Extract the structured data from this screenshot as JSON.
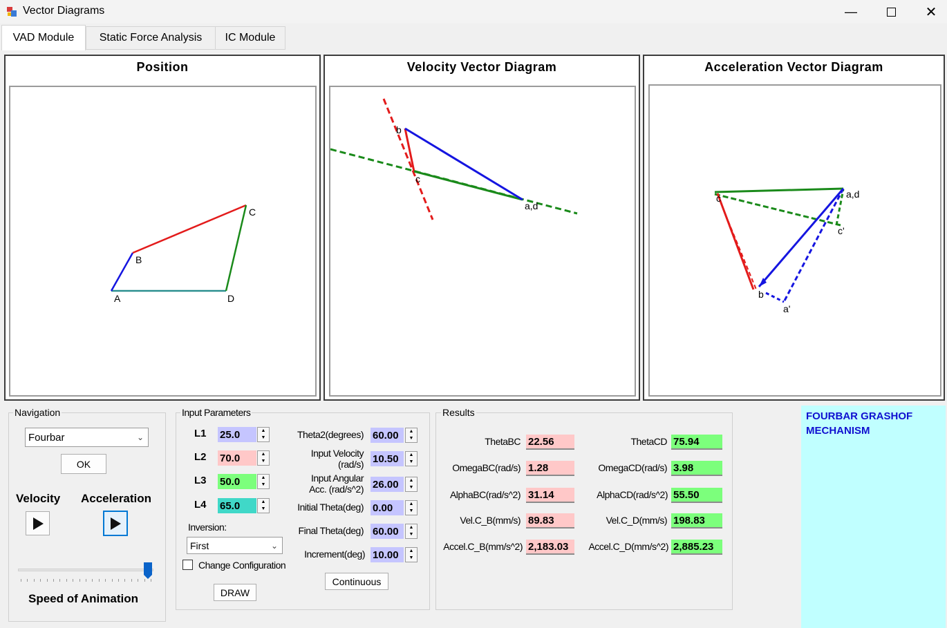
{
  "window": {
    "title": "Vector Diagrams"
  },
  "tabs": [
    "VAD Module",
    "Static Force Analysis",
    "IC Module"
  ],
  "panels": {
    "position": {
      "title": "Position",
      "labels": {
        "A": "A",
        "B": "B",
        "C": "C",
        "D": "D"
      }
    },
    "velocity": {
      "title": "Velocity Vector Diagram",
      "labels": {
        "b": "b",
        "c": "c",
        "ad": "a,d"
      }
    },
    "acceleration": {
      "title": "Acceleration Vector Diagram",
      "labels": {
        "c": "c",
        "ad": "a,d",
        "cp": "c'",
        "b": "b",
        "ap": "a'"
      }
    }
  },
  "navigation": {
    "title": "Navigation",
    "mechanism": "Fourbar",
    "ok": "OK",
    "velocity": "Velocity",
    "acceleration": "Acceleration",
    "speed": "Speed of Animation",
    "speed_level": 1.0
  },
  "inputs": {
    "title": "Input Parameters",
    "L1_label": "L1",
    "L1": "25.0",
    "L2_label": "L2",
    "L2": "70.0",
    "L3_label": "L3",
    "L3": "50.0",
    "L4_label": "L4",
    "L4": "65.0",
    "inversion_label": "Inversion:",
    "inversion": "First",
    "change_config": "Change Configuration",
    "draw": "DRAW",
    "theta2_label": "Theta2(degrees)",
    "theta2": "60.00",
    "vel_label_1": "Input Velocity",
    "vel_label_2": "(rad/s)",
    "vel": "10.50",
    "acc_label_1": "Input Angular",
    "acc_label_2": "Acc. (rad/s^2)",
    "acc": "26.00",
    "init_label": "Initial Theta(deg)",
    "init": "0.00",
    "final_label": "Final Theta(deg)",
    "final": "60.00",
    "inc_label": "Increment(deg)",
    "inc": "10.00",
    "continuous": "Continuous"
  },
  "results": {
    "title": "Results",
    "thetaBC_label": "ThetaBC",
    "thetaBC": "22.56",
    "omegaBC_label": "OmegaBC(rad/s)",
    "omegaBC": "1.28",
    "alphaBC_label": "AlphaBC(rad/s^2)",
    "alphaBC": "31.14",
    "velCB_label": "Vel.C_B(mm/s)",
    "velCB": "89.83",
    "accCB_label": "Accel.C_B(mm/s^2)",
    "accCB": "2,183.03",
    "thetaCD_label": "ThetaCD",
    "thetaCD": "75.94",
    "omegaCD_label": "OmegaCD(rad/s)",
    "omegaCD": "3.98",
    "alphaCD_label": "AlphaCD(rad/s^2)",
    "alphaCD": "55.50",
    "velCD_label": "Vel.C_D(mm/s)",
    "velCD": "198.83",
    "accCD_label": "Accel.C_D(mm/s^2)",
    "accCD": "2,885.23"
  },
  "info": {
    "line1": "FOURBAR GRASHOF",
    "line2": "MECHANISM"
  },
  "colors": {
    "link_red": "#e31b1b",
    "link_green": "#1a8a1a",
    "link_blue": "#1515e0",
    "link_teal": "#2a8f8f",
    "cyan_panel": "#c0ffff",
    "value_red": "#ffc8c8",
    "value_green": "#7cff7c",
    "value_blue": "#c5c5ff",
    "value_teal": "#40d8c8",
    "info_text": "#1010d0"
  }
}
